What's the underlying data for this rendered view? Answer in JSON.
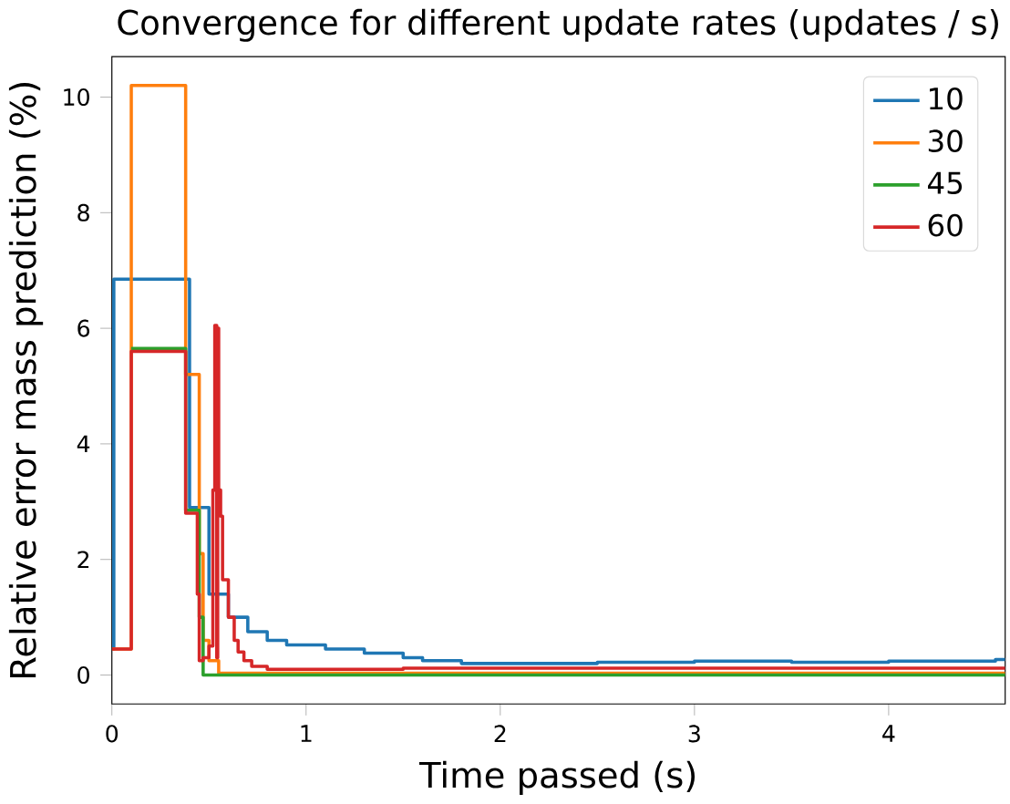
{
  "chart_data": {
    "type": "step",
    "title": "Convergence for different update rates (updates / s)",
    "xlabel": "Time passed (s)",
    "ylabel": "Relative error mass prediction (%)",
    "xlim": [
      0,
      4.6
    ],
    "ylim": [
      -0.5,
      10.7
    ],
    "xticks": [
      0,
      1,
      2,
      3,
      4
    ],
    "yticks": [
      0,
      2,
      4,
      6,
      8,
      10
    ],
    "legend": "top right",
    "series": [
      {
        "name": "10",
        "color": "#1f77b4",
        "x": [
          0,
          0.01,
          0.4,
          0.5,
          0.6,
          0.7,
          0.8,
          0.9,
          1.1,
          1.3,
          1.5,
          1.6,
          1.8,
          2.5,
          3.0,
          3.5,
          4.0,
          4.55,
          4.6
        ],
        "values": [
          0.45,
          6.85,
          2.9,
          1.4,
          1.0,
          0.75,
          0.6,
          0.52,
          0.45,
          0.38,
          0.3,
          0.25,
          0.2,
          0.22,
          0.24,
          0.22,
          0.24,
          0.27,
          0.27
        ]
      },
      {
        "name": "30",
        "color": "#ff7f0e",
        "x": [
          0,
          0.1,
          0.38,
          0.45,
          0.47,
          0.5,
          0.55,
          4.6
        ],
        "values": [
          0.45,
          10.2,
          5.2,
          2.1,
          0.6,
          0.25,
          0.03,
          0.03
        ]
      },
      {
        "name": "45",
        "color": "#2ca02c",
        "x": [
          0.1,
          0.38,
          0.45,
          0.47,
          4.6
        ],
        "values": [
          5.65,
          2.85,
          1.0,
          0.0,
          0.0
        ]
      },
      {
        "name": "60",
        "color": "#d62728",
        "x": [
          0,
          0.1,
          0.38,
          0.44,
          0.45,
          0.47,
          0.5,
          0.52,
          0.53,
          0.54,
          0.545,
          0.55,
          0.56,
          0.57,
          0.6,
          0.63,
          0.65,
          0.68,
          0.72,
          0.8,
          0.9,
          1.5,
          4.6
        ],
        "values": [
          0.45,
          5.6,
          2.8,
          1.4,
          0.25,
          0.3,
          0.5,
          3.2,
          6.05,
          0.3,
          6.0,
          3.2,
          2.75,
          1.65,
          1.0,
          0.6,
          0.4,
          0.25,
          0.15,
          0.1,
          0.1,
          0.12,
          0.12
        ]
      }
    ]
  }
}
